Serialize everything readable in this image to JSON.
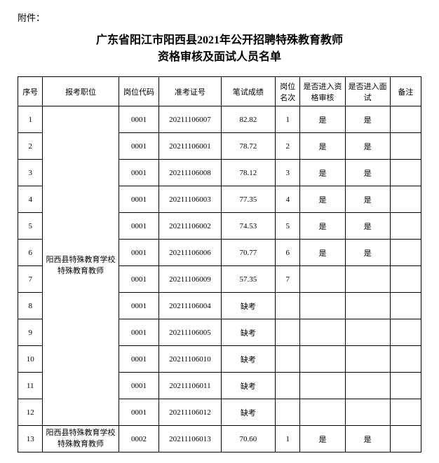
{
  "attachment_label": "附件：",
  "title_line1": "广东省阳江市阳西县2021年公开招聘特殊教育教师",
  "title_line2": "资格审核及面试人员名单",
  "headers": {
    "seq": "序号",
    "position": "报考职位",
    "job_code": "岗位代码",
    "exam_no": "准考证号",
    "score": "笔试成绩",
    "rank": "岗位名次",
    "qual_check": "是否进入资格审核",
    "interview": "是否进入面试",
    "note": "备注"
  },
  "position_group1_line1": "阳西县特殊教育学校",
  "position_group1_line2": "特殊教育教师",
  "position_group2_line1": "阳西县特殊教育学校",
  "position_group2_line2": "特殊教育教师",
  "rows": [
    {
      "seq": "1",
      "job_code": "0001",
      "exam_no": "20211106007",
      "score": "82.82",
      "rank": "1",
      "qual": "是",
      "interview": "是",
      "note": ""
    },
    {
      "seq": "2",
      "job_code": "0001",
      "exam_no": "20211106001",
      "score": "78.72",
      "rank": "2",
      "qual": "是",
      "interview": "是",
      "note": ""
    },
    {
      "seq": "3",
      "job_code": "0001",
      "exam_no": "20211106008",
      "score": "78.12",
      "rank": "3",
      "qual": "是",
      "interview": "是",
      "note": ""
    },
    {
      "seq": "4",
      "job_code": "0001",
      "exam_no": "20211106003",
      "score": "77.35",
      "rank": "4",
      "qual": "是",
      "interview": "是",
      "note": ""
    },
    {
      "seq": "5",
      "job_code": "0001",
      "exam_no": "20211106002",
      "score": "74.53",
      "rank": "5",
      "qual": "是",
      "interview": "是",
      "note": ""
    },
    {
      "seq": "6",
      "job_code": "0001",
      "exam_no": "20211106006",
      "score": "70.77",
      "rank": "6",
      "qual": "是",
      "interview": "是",
      "note": ""
    },
    {
      "seq": "7",
      "job_code": "0001",
      "exam_no": "20211106009",
      "score": "57.35",
      "rank": "7",
      "qual": "",
      "interview": "",
      "note": ""
    },
    {
      "seq": "8",
      "job_code": "0001",
      "exam_no": "20211106004",
      "score": "缺考",
      "rank": "",
      "qual": "",
      "interview": "",
      "note": ""
    },
    {
      "seq": "9",
      "job_code": "0001",
      "exam_no": "20211106005",
      "score": "缺考",
      "rank": "",
      "qual": "",
      "interview": "",
      "note": ""
    },
    {
      "seq": "10",
      "job_code": "0001",
      "exam_no": "20211106010",
      "score": "缺考",
      "rank": "",
      "qual": "",
      "interview": "",
      "note": ""
    },
    {
      "seq": "11",
      "job_code": "0001",
      "exam_no": "20211106011",
      "score": "缺考",
      "rank": "",
      "qual": "",
      "interview": "",
      "note": ""
    },
    {
      "seq": "12",
      "job_code": "0001",
      "exam_no": "20211106012",
      "score": "缺考",
      "rank": "",
      "qual": "",
      "interview": "",
      "note": ""
    },
    {
      "seq": "13",
      "job_code": "0002",
      "exam_no": "20211106013",
      "score": "70.60",
      "rank": "1",
      "qual": "是",
      "interview": "是",
      "note": ""
    }
  ]
}
